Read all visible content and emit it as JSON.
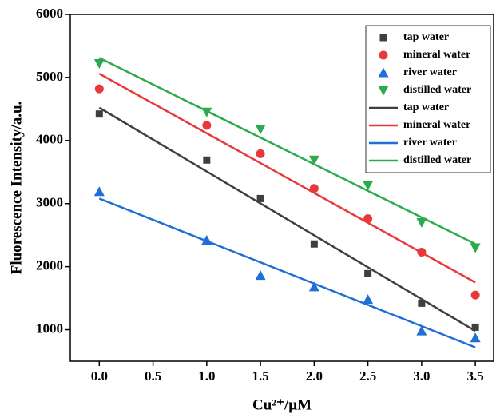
{
  "chart_data": {
    "type": "scatter",
    "xlabel": "Cu²⁺/μM",
    "ylabel": "Fluorescence Intensity/a.u.",
    "xlim": [
      -0.27,
      3.67
    ],
    "ylim": [
      500,
      6000
    ],
    "xticks": [
      {
        "value": 0,
        "label": "0.0"
      },
      0.5,
      {
        "value": 1,
        "label": "1.0"
      },
      1.5,
      {
        "value": 2,
        "label": "2.0"
      },
      2.5,
      {
        "value": 3,
        "label": "3.0"
      },
      3.5
    ],
    "yticks": [
      1000,
      2000,
      3000,
      4000,
      5000,
      6000
    ],
    "legend": "upper right",
    "series": [
      {
        "name": "tap water",
        "color": "#3f3f3f",
        "style": "square",
        "x": [
          0,
          1,
          1.5,
          2,
          2.5,
          3,
          3.5
        ],
        "values": [
          4420,
          3690,
          3080,
          2360,
          1890,
          1420,
          1040
        ]
      },
      {
        "name": "mineral water",
        "color": "#e8393a",
        "style": "circle",
        "x": [
          0,
          1,
          1.5,
          2,
          2.5,
          3,
          3.5
        ],
        "values": [
          4820,
          4240,
          3790,
          3240,
          2760,
          2230,
          1550
        ]
      },
      {
        "name": "river water",
        "color": "#1f6fd6",
        "style": "triangle-up",
        "x": [
          0,
          1,
          1.5,
          2,
          2.5,
          3,
          3.5
        ],
        "values": [
          3190,
          2420,
          1860,
          1680,
          1480,
          980,
          870
        ]
      },
      {
        "name": "distilled water",
        "color": "#2bab4b",
        "style": "triangle-down",
        "x": [
          0,
          1,
          1.5,
          2,
          2.5,
          3,
          3.5
        ],
        "values": [
          5220,
          4450,
          4180,
          3690,
          3290,
          2700,
          2300
        ]
      },
      {
        "name": "tap water",
        "color": "#3f3f3f",
        "style": "line",
        "x": [
          0,
          3.5
        ],
        "values": [
          4520,
          980
        ]
      },
      {
        "name": "mineral water",
        "color": "#e8393a",
        "style": "line",
        "x": [
          0,
          3.5
        ],
        "values": [
          5060,
          1750
        ]
      },
      {
        "name": "river water",
        "color": "#1f6fd6",
        "style": "line",
        "x": [
          0,
          3.5
        ],
        "values": [
          3080,
          720
        ]
      },
      {
        "name": "distilled water",
        "color": "#2bab4b",
        "style": "line",
        "x": [
          0,
          3.5
        ],
        "values": [
          5310,
          2360
        ]
      }
    ]
  }
}
